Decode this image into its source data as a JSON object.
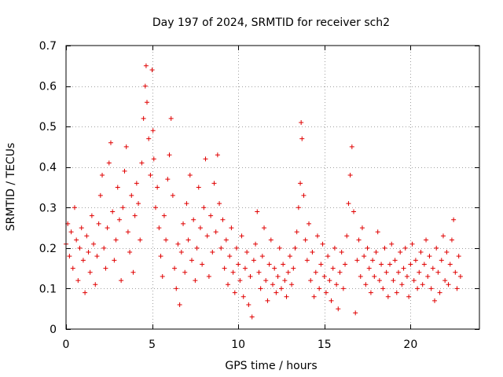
{
  "chart_data": {
    "type": "scatter",
    "title": "Day 197 of 2024, SRMTID for receiver sch2",
    "xlabel": "GPS time / hours",
    "ylabel": "SRMTID / TECUs",
    "xlim": [
      0,
      24
    ],
    "ylim": [
      0,
      0.7
    ],
    "xticks": [
      0,
      5,
      10,
      15,
      20
    ],
    "xtick_labels": [
      "0",
      "5",
      "10",
      "15",
      "20"
    ],
    "yticks": [
      0,
      0.1,
      0.2,
      0.3,
      0.4,
      0.5,
      0.6,
      0.7
    ],
    "ytick_labels": [
      "0",
      "0.1",
      "0.2",
      "0.3",
      "0.4",
      "0.5",
      "0.6",
      "0.7"
    ],
    "grid": true,
    "marker": "+",
    "color": "#e00000",
    "series": [
      {
        "name": "SRMTID",
        "points": [
          [
            0.0,
            0.21
          ],
          [
            0.1,
            0.26
          ],
          [
            0.2,
            0.18
          ],
          [
            0.3,
            0.24
          ],
          [
            0.4,
            0.15
          ],
          [
            0.5,
            0.3
          ],
          [
            0.6,
            0.22
          ],
          [
            0.7,
            0.12
          ],
          [
            0.8,
            0.2
          ],
          [
            0.9,
            0.25
          ],
          [
            1.0,
            0.17
          ],
          [
            1.1,
            0.09
          ],
          [
            1.2,
            0.23
          ],
          [
            1.3,
            0.19
          ],
          [
            1.4,
            0.14
          ],
          [
            1.5,
            0.28
          ],
          [
            1.6,
            0.21
          ],
          [
            1.7,
            0.11
          ],
          [
            1.8,
            0.18
          ],
          [
            1.9,
            0.26
          ],
          [
            2.0,
            0.33
          ],
          [
            2.1,
            0.38
          ],
          [
            2.2,
            0.2
          ],
          [
            2.3,
            0.15
          ],
          [
            2.4,
            0.25
          ],
          [
            2.5,
            0.41
          ],
          [
            2.6,
            0.46
          ],
          [
            2.7,
            0.29
          ],
          [
            2.8,
            0.17
          ],
          [
            2.9,
            0.22
          ],
          [
            3.0,
            0.35
          ],
          [
            3.1,
            0.27
          ],
          [
            3.2,
            0.12
          ],
          [
            3.3,
            0.3
          ],
          [
            3.4,
            0.39
          ],
          [
            3.5,
            0.45
          ],
          [
            3.6,
            0.24
          ],
          [
            3.7,
            0.19
          ],
          [
            3.8,
            0.33
          ],
          [
            3.9,
            0.14
          ],
          [
            4.0,
            0.28
          ],
          [
            4.1,
            0.36
          ],
          [
            4.2,
            0.31
          ],
          [
            4.3,
            0.22
          ],
          [
            4.4,
            0.41
          ],
          [
            4.5,
            0.52
          ],
          [
            4.6,
            0.6
          ],
          [
            4.65,
            0.65
          ],
          [
            4.7,
            0.56
          ],
          [
            4.8,
            0.47
          ],
          [
            4.9,
            0.38
          ],
          [
            5.0,
            0.64
          ],
          [
            5.05,
            0.49
          ],
          [
            5.1,
            0.42
          ],
          [
            5.2,
            0.3
          ],
          [
            5.3,
            0.35
          ],
          [
            5.4,
            0.25
          ],
          [
            5.5,
            0.18
          ],
          [
            5.6,
            0.13
          ],
          [
            5.7,
            0.28
          ],
          [
            5.8,
            0.22
          ],
          [
            5.9,
            0.37
          ],
          [
            6.0,
            0.43
          ],
          [
            6.1,
            0.52
          ],
          [
            6.2,
            0.33
          ],
          [
            6.3,
            0.15
          ],
          [
            6.4,
            0.1
          ],
          [
            6.5,
            0.21
          ],
          [
            6.6,
            0.06
          ],
          [
            6.7,
            0.19
          ],
          [
            6.8,
            0.26
          ],
          [
            6.9,
            0.14
          ],
          [
            7.0,
            0.31
          ],
          [
            7.1,
            0.22
          ],
          [
            7.2,
            0.38
          ],
          [
            7.3,
            0.17
          ],
          [
            7.4,
            0.27
          ],
          [
            7.5,
            0.12
          ],
          [
            7.6,
            0.2
          ],
          [
            7.7,
            0.35
          ],
          [
            7.8,
            0.25
          ],
          [
            7.9,
            0.16
          ],
          [
            8.0,
            0.3
          ],
          [
            8.1,
            0.42
          ],
          [
            8.2,
            0.23
          ],
          [
            8.3,
            0.13
          ],
          [
            8.4,
            0.28
          ],
          [
            8.5,
            0.19
          ],
          [
            8.6,
            0.36
          ],
          [
            8.7,
            0.24
          ],
          [
            8.8,
            0.43
          ],
          [
            8.9,
            0.31
          ],
          [
            9.0,
            0.2
          ],
          [
            9.1,
            0.27
          ],
          [
            9.2,
            0.15
          ],
          [
            9.3,
            0.22
          ],
          [
            9.4,
            0.11
          ],
          [
            9.5,
            0.18
          ],
          [
            9.6,
            0.25
          ],
          [
            9.7,
            0.14
          ],
          [
            9.8,
            0.09
          ],
          [
            9.9,
            0.2
          ],
          [
            10.0,
            0.16
          ],
          [
            10.1,
            0.12
          ],
          [
            10.2,
            0.23
          ],
          [
            10.3,
            0.08
          ],
          [
            10.4,
            0.15
          ],
          [
            10.5,
            0.19
          ],
          [
            10.6,
            0.06
          ],
          [
            10.7,
            0.13
          ],
          [
            10.8,
            0.03
          ],
          [
            10.9,
            0.17
          ],
          [
            11.0,
            0.21
          ],
          [
            11.1,
            0.29
          ],
          [
            11.2,
            0.14
          ],
          [
            11.3,
            0.1
          ],
          [
            11.4,
            0.18
          ],
          [
            11.5,
            0.25
          ],
          [
            11.6,
            0.12
          ],
          [
            11.7,
            0.07
          ],
          [
            11.8,
            0.16
          ],
          [
            11.9,
            0.22
          ],
          [
            12.0,
            0.11
          ],
          [
            12.1,
            0.15
          ],
          [
            12.2,
            0.09
          ],
          [
            12.3,
            0.13
          ],
          [
            12.4,
            0.2
          ],
          [
            12.5,
            0.1
          ],
          [
            12.6,
            0.16
          ],
          [
            12.7,
            0.12
          ],
          [
            12.8,
            0.08
          ],
          [
            12.9,
            0.14
          ],
          [
            13.0,
            0.18
          ],
          [
            13.1,
            0.11
          ],
          [
            13.2,
            0.15
          ],
          [
            13.3,
            0.2
          ],
          [
            13.4,
            0.24
          ],
          [
            13.5,
            0.3
          ],
          [
            13.6,
            0.36
          ],
          [
            13.65,
            0.51
          ],
          [
            13.7,
            0.47
          ],
          [
            13.8,
            0.33
          ],
          [
            13.9,
            0.22
          ],
          [
            14.0,
            0.17
          ],
          [
            14.1,
            0.26
          ],
          [
            14.2,
            0.12
          ],
          [
            14.3,
            0.19
          ],
          [
            14.4,
            0.08
          ],
          [
            14.5,
            0.14
          ],
          [
            14.6,
            0.23
          ],
          [
            14.7,
            0.1
          ],
          [
            14.8,
            0.16
          ],
          [
            14.9,
            0.21
          ],
          [
            15.0,
            0.13
          ],
          [
            15.1,
            0.09
          ],
          [
            15.2,
            0.18
          ],
          [
            15.3,
            0.12
          ],
          [
            15.4,
            0.07
          ],
          [
            15.5,
            0.15
          ],
          [
            15.6,
            0.2
          ],
          [
            15.7,
            0.11
          ],
          [
            15.8,
            0.05
          ],
          [
            15.9,
            0.14
          ],
          [
            16.0,
            0.19
          ],
          [
            16.1,
            0.1
          ],
          [
            16.2,
            0.16
          ],
          [
            16.3,
            0.23
          ],
          [
            16.4,
            0.31
          ],
          [
            16.5,
            0.38
          ],
          [
            16.6,
            0.45
          ],
          [
            16.7,
            0.29
          ],
          [
            16.8,
            0.04
          ],
          [
            16.9,
            0.17
          ],
          [
            17.0,
            0.22
          ],
          [
            17.1,
            0.13
          ],
          [
            17.2,
            0.25
          ],
          [
            17.3,
            0.18
          ],
          [
            17.4,
            0.11
          ],
          [
            17.5,
            0.2
          ],
          [
            17.6,
            0.15
          ],
          [
            17.7,
            0.09
          ],
          [
            17.8,
            0.17
          ],
          [
            17.9,
            0.13
          ],
          [
            18.0,
            0.19
          ],
          [
            18.1,
            0.24
          ],
          [
            18.2,
            0.12
          ],
          [
            18.3,
            0.16
          ],
          [
            18.4,
            0.1
          ],
          [
            18.5,
            0.2
          ],
          [
            18.6,
            0.14
          ],
          [
            18.7,
            0.08
          ],
          [
            18.8,
            0.16
          ],
          [
            18.9,
            0.21
          ],
          [
            19.0,
            0.12
          ],
          [
            19.1,
            0.17
          ],
          [
            19.2,
            0.09
          ],
          [
            19.3,
            0.14
          ],
          [
            19.4,
            0.19
          ],
          [
            19.5,
            0.11
          ],
          [
            19.6,
            0.15
          ],
          [
            19.7,
            0.2
          ],
          [
            19.8,
            0.13
          ],
          [
            19.9,
            0.08
          ],
          [
            20.0,
            0.16
          ],
          [
            20.1,
            0.21
          ],
          [
            20.2,
            0.12
          ],
          [
            20.3,
            0.17
          ],
          [
            20.4,
            0.1
          ],
          [
            20.5,
            0.14
          ],
          [
            20.6,
            0.19
          ],
          [
            20.7,
            0.11
          ],
          [
            20.8,
            0.16
          ],
          [
            20.9,
            0.22
          ],
          [
            21.0,
            0.13
          ],
          [
            21.1,
            0.18
          ],
          [
            21.2,
            0.1
          ],
          [
            21.3,
            0.15
          ],
          [
            21.4,
            0.07
          ],
          [
            21.5,
            0.2
          ],
          [
            21.6,
            0.14
          ],
          [
            21.7,
            0.09
          ],
          [
            21.8,
            0.17
          ],
          [
            21.9,
            0.23
          ],
          [
            22.0,
            0.12
          ],
          [
            22.1,
            0.19
          ],
          [
            22.2,
            0.11
          ],
          [
            22.3,
            0.16
          ],
          [
            22.4,
            0.22
          ],
          [
            22.5,
            0.27
          ],
          [
            22.6,
            0.14
          ],
          [
            22.7,
            0.1
          ],
          [
            22.8,
            0.18
          ],
          [
            22.9,
            0.13
          ]
        ]
      }
    ]
  }
}
